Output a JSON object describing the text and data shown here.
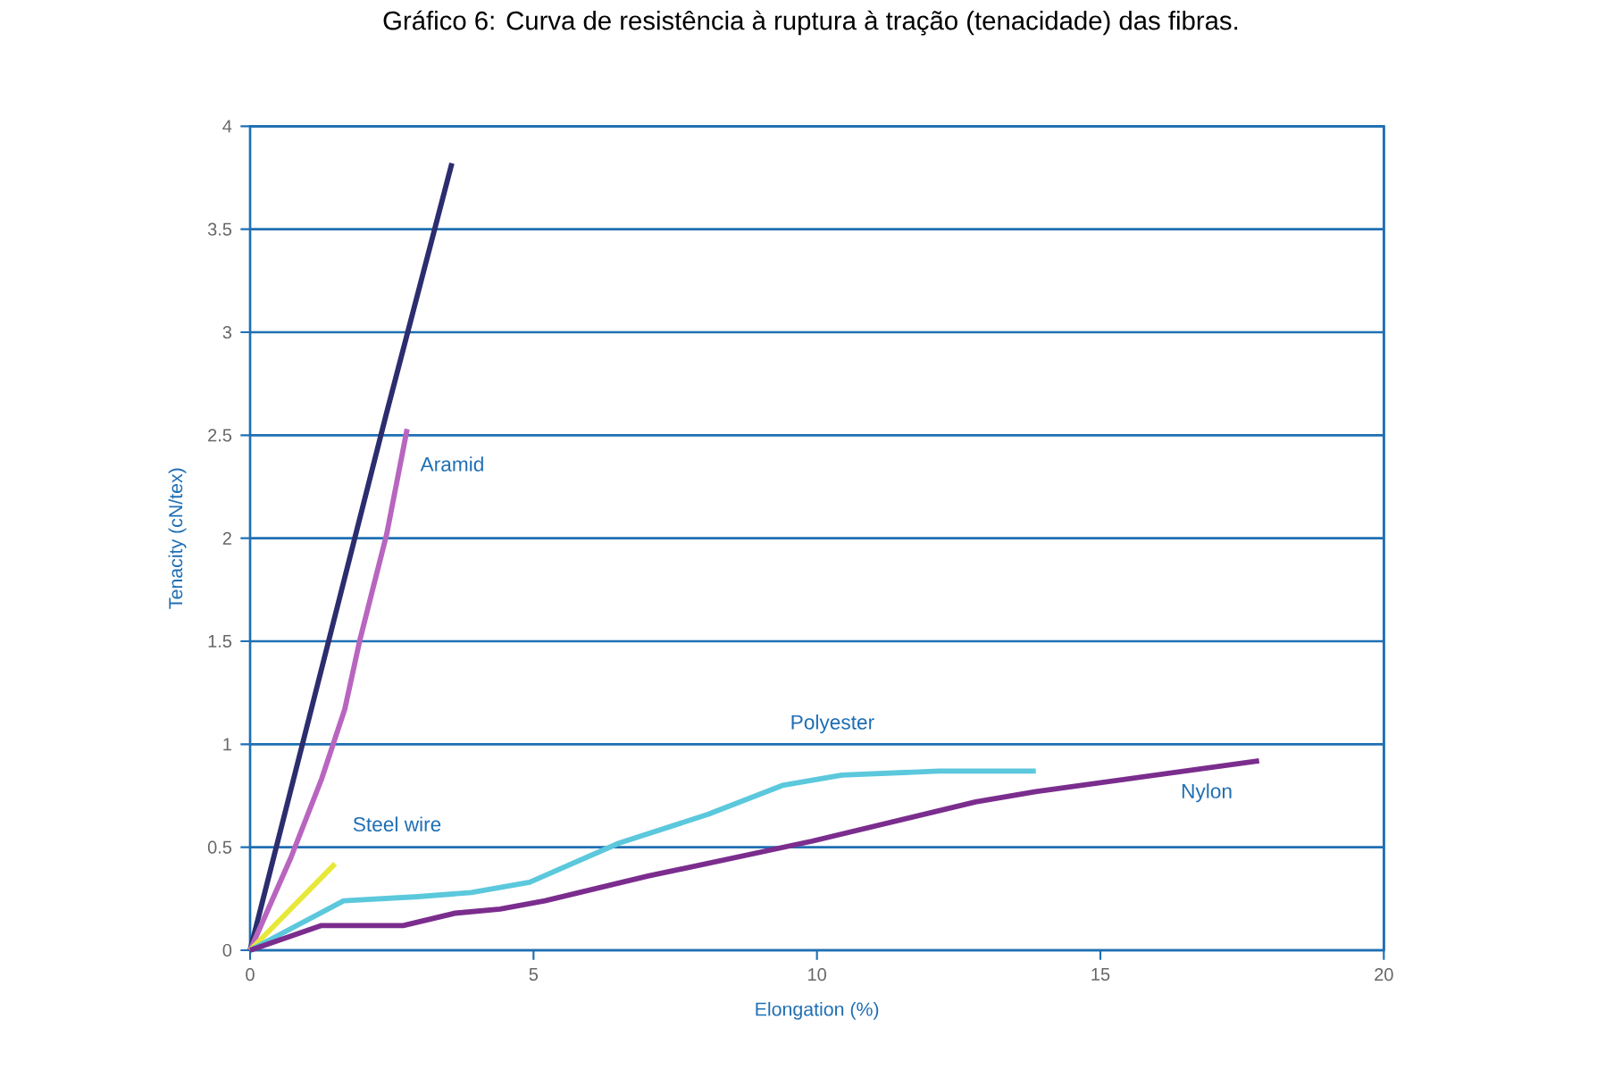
{
  "chart_data": {
    "type": "line",
    "title": "Gráfico 6: Curva de resistência à ruptura à tração (tenacidade) das fibras.",
    "xlabel": "Elongation (%)",
    "ylabel": "Tenacity (cN/tex)",
    "xlim": [
      0,
      20
    ],
    "ylim": [
      0,
      4
    ],
    "xticks": [
      0,
      5,
      10,
      15,
      20
    ],
    "yticks": [
      0,
      0.5,
      1,
      1.5,
      2,
      2.5,
      3,
      3.5,
      4
    ],
    "grid": "y",
    "marker": "none",
    "line_style": "solid",
    "series": [
      {
        "color": "#2b2d6e",
        "x": [
          0,
          1.2,
          2.4,
          3.56
        ],
        "values": [
          0,
          1.3,
          2.6,
          3.82
        ]
      },
      {
        "name": "Aramid",
        "color": "#b865c0",
        "x": [
          0,
          0.72,
          1.26,
          1.67,
          1.94,
          2.41,
          2.77
        ],
        "values": [
          0,
          0.45,
          0.83,
          1.17,
          1.51,
          2.02,
          2.53
        ]
      },
      {
        "name": "Steel wire",
        "color": "#e8e83a",
        "x": [
          0,
          1.5
        ],
        "values": [
          0,
          0.42
        ]
      },
      {
        "name": "Polyester",
        "color": "#5bc8dc",
        "x": [
          0,
          1.65,
          2.96,
          3.9,
          4.93,
          6.51,
          8.08,
          9.39,
          10.44,
          12.15,
          13.86
        ],
        "values": [
          0,
          0.24,
          0.26,
          0.28,
          0.33,
          0.52,
          0.66,
          0.8,
          0.85,
          0.87,
          0.87
        ]
      },
      {
        "name": "Nylon",
        "color": "#7b2d8e",
        "x": [
          0,
          1.26,
          2.7,
          3.62,
          4.41,
          5.2,
          7.02,
          9.92,
          12.8,
          13.86,
          17.8
        ],
        "values": [
          0,
          0.12,
          0.12,
          0.18,
          0.2,
          0.24,
          0.36,
          0.53,
          0.72,
          0.77,
          0.92
        ]
      }
    ]
  }
}
